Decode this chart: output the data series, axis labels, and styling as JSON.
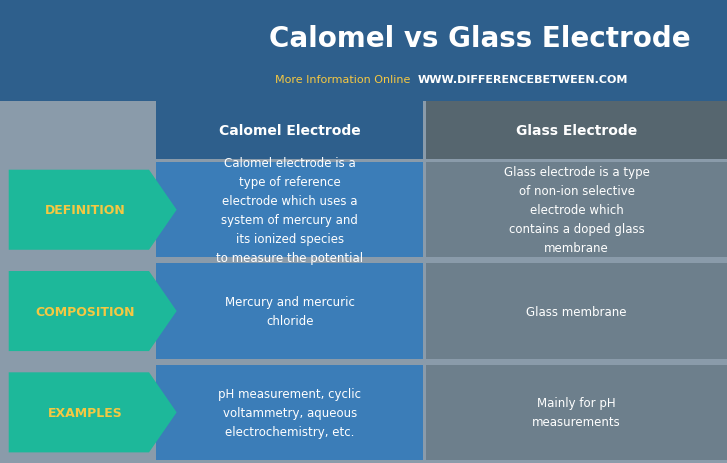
{
  "title": "Calomel vs Glass Electrode",
  "subtitle_left": "More Information Online",
  "subtitle_right": "WWW.DIFFERENCEBETWEEN.COM",
  "col1_header": "Calomel Electrode",
  "col2_header": "Glass Electrode",
  "rows": [
    {
      "label": "DEFINITION",
      "col1": "Calomel electrode is a\ntype of reference\nelectrode which uses a\nsystem of mercury and\nits ionized species\nto measure the potential",
      "col2": "Glass electrode is a type\nof non-ion selective\nelectrode which\ncontains a doped glass\nmembrane"
    },
    {
      "label": "COMPOSITION",
      "col1": "Mercury and mercuric\nchloride",
      "col2": "Glass membrane"
    },
    {
      "label": "EXAMPLES",
      "col1": "pH measurement, cyclic\nvoltammetry, aqueous\nelectrochemistry, etc.",
      "col2": "Mainly for pH\nmeasurements"
    }
  ],
  "bg_color": "#8a9baa",
  "header_bg_color": "#2e5f8c",
  "col1_cell_color": "#3b7db8",
  "col2_cell_color": "#6d7f8c",
  "col2_header_color": "#56666f",
  "arrow_color": "#1db89a",
  "arrow_text_color": "#f5c842",
  "header_text_color": "#ffffff",
  "cell_text_color": "#ffffff",
  "title_color": "#ffffff",
  "subtitle_left_color": "#f5c842",
  "subtitle_right_color": "#ffffff",
  "title_fontsize": 20,
  "subtitle_fontsize": 8,
  "header_fontsize": 10,
  "cell_fontsize": 8.5,
  "label_fontsize": 9
}
